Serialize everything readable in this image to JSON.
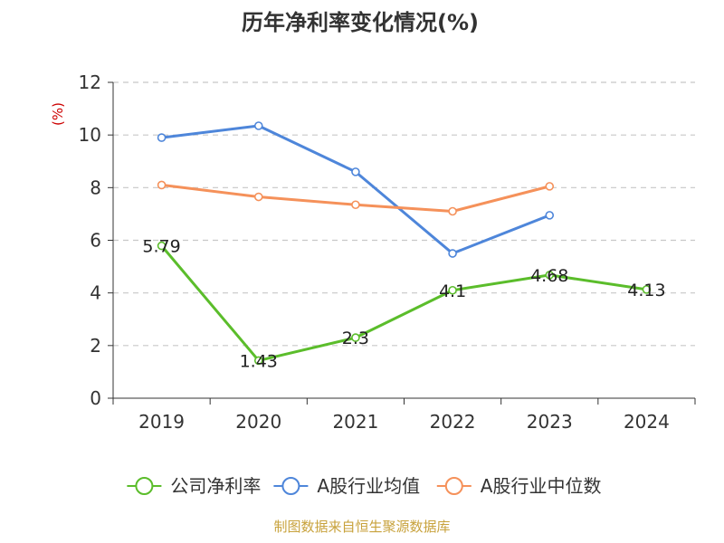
{
  "chart_data": {
    "type": "line",
    "title": "历年净利率变化情况(%)",
    "ylabel": "(%)",
    "xlabel": "",
    "categories": [
      "2019",
      "2020",
      "2021",
      "2022",
      "2023",
      "2024"
    ],
    "ylim": [
      0,
      12
    ],
    "yticks": [
      0,
      2,
      4,
      6,
      8,
      10,
      12
    ],
    "grid": true,
    "legend_position": "bottom",
    "series": [
      {
        "name": "公司净利率",
        "color": "#5bbd2b",
        "values": [
          5.79,
          1.43,
          2.3,
          4.1,
          4.68,
          4.13
        ],
        "labels": [
          "5.79",
          "1.43",
          "2.3",
          "4.1",
          "4.68",
          "4.13"
        ],
        "show_labels": true
      },
      {
        "name": "A股行业均值",
        "color": "#4e86da",
        "values": [
          9.9,
          10.35,
          8.6,
          5.5,
          6.95,
          null
        ],
        "show_labels": false
      },
      {
        "name": "A股行业中位数",
        "color": "#f5915a",
        "values": [
          8.1,
          7.65,
          7.35,
          7.1,
          8.05,
          null
        ],
        "show_labels": false
      }
    ],
    "ylabel_color": "#cc0000"
  },
  "source": {
    "text": "制图数据来自恒生聚源数据库",
    "color": "#c8a23c"
  }
}
